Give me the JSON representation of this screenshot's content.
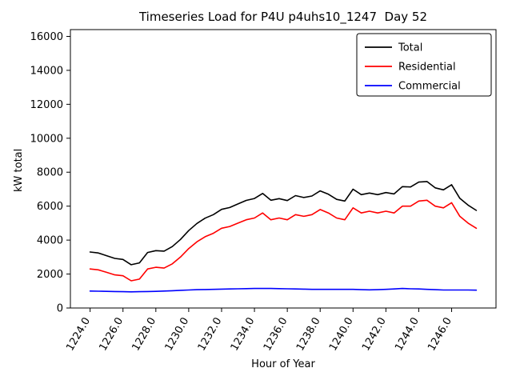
{
  "chart_data": {
    "type": "line",
    "title": "Timeseries Load for P4U p4uhs10_1247  Day 52",
    "xlabel": "Hour of Year",
    "ylabel": "kW total",
    "xlim": [
      1222.8,
      1248.7
    ],
    "ylim": [
      0,
      16400
    ],
    "yticks": [
      0,
      2000,
      4000,
      6000,
      8000,
      10000,
      12000,
      14000,
      16000
    ],
    "xticks": [
      1224,
      1226,
      1228,
      1230,
      1232,
      1234,
      1236,
      1238,
      1240,
      1242,
      1244,
      1246
    ],
    "xtick_decimals": 1,
    "grid": false,
    "legend_position": "upper right",
    "x": [
      1224.0,
      1224.5,
      1225.0,
      1225.5,
      1226.0,
      1226.5,
      1227.0,
      1227.5,
      1228.0,
      1228.5,
      1229.0,
      1229.5,
      1230.0,
      1230.5,
      1231.0,
      1231.5,
      1232.0,
      1232.5,
      1233.0,
      1233.5,
      1234.0,
      1234.5,
      1235.0,
      1235.5,
      1236.0,
      1236.5,
      1237.0,
      1237.5,
      1238.0,
      1238.5,
      1239.0,
      1239.5,
      1240.0,
      1240.5,
      1241.0,
      1241.5,
      1242.0,
      1242.5,
      1243.0,
      1243.5,
      1244.0,
      1244.5,
      1245.0,
      1245.5,
      1246.0,
      1246.5,
      1247.0,
      1247.5
    ],
    "series": [
      {
        "name": "Total",
        "color": "#000000",
        "values": [
          3300,
          3240,
          3080,
          2920,
          2860,
          2550,
          2660,
          3270,
          3380,
          3350,
          3620,
          4040,
          4560,
          4980,
          5290,
          5500,
          5810,
          5920,
          6130,
          6340,
          6450,
          6750,
          6350,
          6440,
          6330,
          6620,
          6510,
          6600,
          6900,
          6700,
          6400,
          6300,
          7000,
          6680,
          6770,
          6680,
          6800,
          6720,
          7150,
          7130,
          7420,
          7450,
          7080,
          6960,
          7260,
          6460,
          6060,
          5750
        ]
      },
      {
        "name": "Residential",
        "color": "#ff0000",
        "values": [
          2300,
          2250,
          2100,
          1950,
          1900,
          1600,
          1700,
          2300,
          2400,
          2350,
          2600,
          3000,
          3500,
          3900,
          4200,
          4400,
          4700,
          4800,
          5000,
          5200,
          5300,
          5600,
          5200,
          5300,
          5200,
          5500,
          5400,
          5500,
          5800,
          5600,
          5300,
          5200,
          5900,
          5600,
          5700,
          5600,
          5700,
          5600,
          6000,
          6000,
          6300,
          6350,
          6000,
          5900,
          6200,
          5400,
          5000,
          4700
        ]
      },
      {
        "name": "Commercial",
        "color": "#0000ff",
        "values": [
          1000,
          990,
          980,
          970,
          960,
          950,
          960,
          970,
          980,
          1000,
          1020,
          1040,
          1060,
          1080,
          1090,
          1100,
          1110,
          1120,
          1130,
          1140,
          1150,
          1150,
          1150,
          1140,
          1130,
          1120,
          1110,
          1100,
          1100,
          1100,
          1100,
          1100,
          1100,
          1080,
          1070,
          1080,
          1100,
          1120,
          1150,
          1130,
          1120,
          1100,
          1080,
          1060,
          1060,
          1060,
          1060,
          1050
        ]
      }
    ]
  }
}
